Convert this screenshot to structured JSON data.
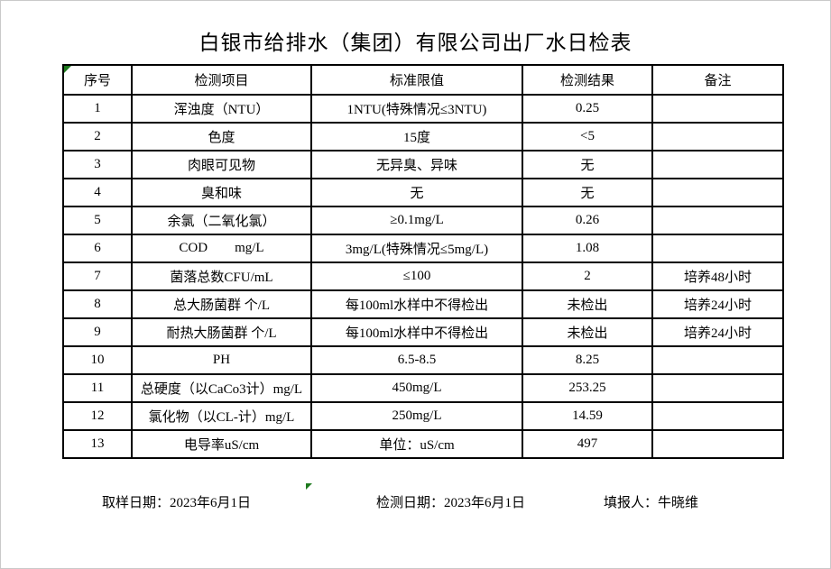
{
  "title": "白银市给排水（集团）有限公司出厂水日检表",
  "table": {
    "headers": [
      "序号",
      "检测项目",
      "标准限值",
      "检测结果",
      "备注"
    ],
    "rows": [
      {
        "no": "1",
        "item": "浑浊度（NTU）",
        "limit": "1NTU(特殊情况≤3NTU)",
        "result": "0.25",
        "note": ""
      },
      {
        "no": "2",
        "item": "色度",
        "limit": "15度",
        "result": "<5",
        "note": ""
      },
      {
        "no": "3",
        "item": "肉眼可见物",
        "limit": "无异臭、异味",
        "result": "无",
        "note": ""
      },
      {
        "no": "4",
        "item": "臭和味",
        "limit": "无",
        "result": "无",
        "note": ""
      },
      {
        "no": "5",
        "item": "余氯（二氧化氯）",
        "limit": "≥0.1mg/L",
        "result": "0.26",
        "note": ""
      },
      {
        "no": "6",
        "item": "COD        mg/L",
        "limit": "3mg/L(特殊情况≤5mg/L)",
        "result": "1.08",
        "note": ""
      },
      {
        "no": "7",
        "item": "菌落总数CFU/mL",
        "limit": "≤100",
        "result": "2",
        "note": "培养48小时"
      },
      {
        "no": "8",
        "item": "总大肠菌群 个/L",
        "limit": "每100ml水样中不得检出",
        "result": "未检出",
        "note": "培养24小时"
      },
      {
        "no": "9",
        "item": "耐热大肠菌群 个/L",
        "limit": "每100ml水样中不得检出",
        "result": "未检出",
        "note": "培养24小时"
      },
      {
        "no": "10",
        "item": "PH",
        "limit": "6.5-8.5",
        "result": "8.25",
        "note": ""
      },
      {
        "no": "11",
        "item": "总硬度（以CaCo3计）mg/L",
        "limit": "450mg/L",
        "result": "253.25",
        "note": ""
      },
      {
        "no": "12",
        "item": "氯化物（以CL-计）mg/L",
        "limit": "250mg/L",
        "result": "14.59",
        "note": ""
      },
      {
        "no": "13",
        "item": "电导率uS/cm",
        "limit": "单位：uS/cm",
        "result": "497",
        "note": ""
      }
    ]
  },
  "footer": {
    "sample_date": "取样日期：2023年6月1日",
    "test_date": "检测日期：2023年6月1日",
    "reporter": "填报人：牛晓维"
  },
  "colors": {
    "border": "#000000",
    "text": "#000000",
    "marker_green": "#1e7a1e",
    "page_border": "#c9c9c9"
  }
}
